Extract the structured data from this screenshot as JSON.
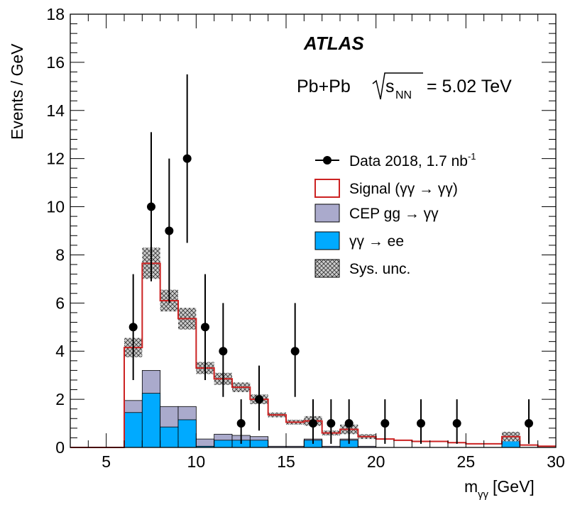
{
  "chart_data": {
    "type": "bar",
    "experiment_label": "ATLAS",
    "collision_text": "Pb+Pb",
    "energy_text": "= 5.02 TeV",
    "ylabel": "Events / GeV",
    "xlabel": "[GeV]",
    "xlim": [
      3,
      30
    ],
    "ylim": [
      0,
      18
    ],
    "x_ticks": [
      5,
      10,
      15,
      20,
      25,
      30
    ],
    "y_ticks": [
      0,
      2,
      4,
      6,
      8,
      10,
      12,
      14,
      16,
      18
    ],
    "bin_edges": [
      3,
      4,
      5,
      6,
      7,
      8,
      9,
      10,
      11,
      12,
      13,
      14,
      15,
      16,
      17,
      18,
      19,
      20,
      21,
      22,
      23,
      24,
      25,
      26,
      27,
      28,
      29,
      30
    ],
    "series": [
      {
        "name": "Signal (γγ → γγ)",
        "kind": "total-prediction-step",
        "color": "#cc2222",
        "values": [
          0,
          0,
          0,
          4.15,
          7.65,
          6.1,
          5.35,
          3.3,
          2.85,
          2.5,
          2.0,
          1.35,
          1.05,
          1.1,
          0.6,
          0.75,
          0.45,
          0.35,
          0.3,
          0.25,
          0.25,
          0.2,
          0.15,
          0.15,
          0.45,
          0.1,
          0.05
        ]
      },
      {
        "name": "CEP gg → γγ",
        "kind": "stacked-fill",
        "color": "#aaaacc",
        "values": [
          0,
          0,
          0,
          1.95,
          3.2,
          1.7,
          1.7,
          0.35,
          0.55,
          0.5,
          0.45,
          0.05,
          0.05,
          0.35,
          0.05,
          0.35,
          0.05,
          0.0,
          0.0,
          0.0,
          0.0,
          0.0,
          0.0,
          0.0,
          0.35,
          0.0,
          0.0
        ]
      },
      {
        "name": "γγ → ee",
        "kind": "stacked-fill",
        "color": "#00aaff",
        "values": [
          0,
          0,
          0,
          1.45,
          2.25,
          0.85,
          1.15,
          0.05,
          0.3,
          0.3,
          0.3,
          0.0,
          0.0,
          0.3,
          0.0,
          0.3,
          0.0,
          0.0,
          0.0,
          0.0,
          0.0,
          0.0,
          0.0,
          0.0,
          0.3,
          0.0,
          0.0
        ]
      }
    ],
    "sys_unc": {
      "name": "Sys. unc.",
      "halfwidths": [
        0,
        0,
        0,
        0.4,
        0.65,
        0.45,
        0.45,
        0.25,
        0.25,
        0.2,
        0.2,
        0.1,
        0.1,
        0.2,
        0.1,
        0.2,
        0.1,
        0.0,
        0.0,
        0.0,
        0.0,
        0.0,
        0.0,
        0.0,
        0.2,
        0.0,
        0.0
      ]
    },
    "data_points": {
      "name": "Data 2018, 1.7 nb",
      "lumi_superscript": "-1",
      "x": [
        6.5,
        7.5,
        8.5,
        9.5,
        10.5,
        11.5,
        12.5,
        13.5,
        15.5,
        16.5,
        17.5,
        18.5,
        20.5,
        22.5,
        24.5,
        28.5
      ],
      "y": [
        5,
        10,
        9,
        12,
        5,
        4,
        1,
        2,
        4,
        1,
        1,
        1,
        1,
        1,
        1,
        1
      ],
      "err_low": [
        2.2,
        3.1,
        3.0,
        3.5,
        2.2,
        1.9,
        0.85,
        1.3,
        1.9,
        0.85,
        0.85,
        0.85,
        0.85,
        0.85,
        0.85,
        0.85
      ],
      "err_high": [
        2.2,
        3.1,
        3.0,
        3.5,
        2.2,
        2.0,
        1.0,
        1.4,
        2.0,
        1.0,
        1.0,
        1.0,
        1.0,
        1.0,
        1.0,
        1.0
      ]
    },
    "legend": {
      "placement": "top-right",
      "entries": [
        {
          "label": "Data 2018, 1.7 nb",
          "sup": "-1"
        },
        {
          "label": "Signal (γγ →  γγ)"
        },
        {
          "label": "CEP gg →  γγ"
        },
        {
          "label": "γγ →  ee"
        },
        {
          "label": "Sys. unc."
        }
      ]
    }
  }
}
